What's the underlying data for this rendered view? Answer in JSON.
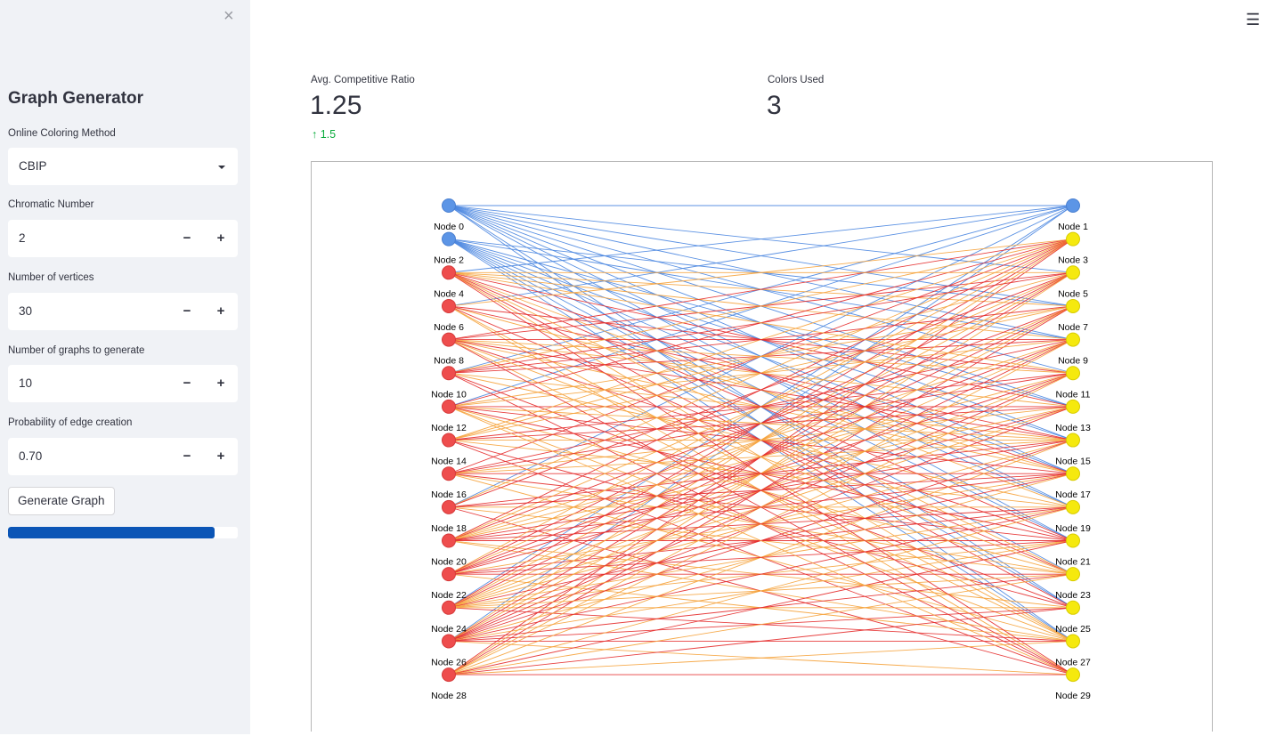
{
  "sidebar": {
    "close_icon": "×",
    "title": "Graph Generator",
    "method_label": "Online Coloring Method",
    "method_value": "CBIP",
    "chromatic_label": "Chromatic Number",
    "chromatic_value": "2",
    "vertices_label": "Number of vertices",
    "vertices_value": "30",
    "graphs_label": "Number of graphs to generate",
    "graphs_value": "10",
    "prob_label": "Probability of edge creation",
    "prob_value": "0.70",
    "minus": "−",
    "plus": "+",
    "generate_label": "Generate Graph",
    "progress": 0.9
  },
  "header": {
    "menu_icon": "☰"
  },
  "metrics": {
    "ratio_label": "Avg. Competitive Ratio",
    "ratio_value": "1.25",
    "ratio_delta": "1.5",
    "delta_icon": "arrow-up-icon",
    "colors_label": "Colors Used",
    "colors_value": "3"
  },
  "colors": {
    "blue": "#5c95e6",
    "red": "#ee4d4d",
    "yellow": "#f5e90e",
    "edge_blue": "#4a86e0",
    "edge_red": "#e52b2b",
    "edge_orange": "#f6a23a"
  },
  "chart_data": {
    "type": "network",
    "nodes": [
      {
        "label": "Node 0",
        "color": "blue"
      },
      {
        "label": "Node 1",
        "color": "blue"
      },
      {
        "label": "Node 2",
        "color": "blue"
      },
      {
        "label": "Node 3",
        "color": "yellow"
      },
      {
        "label": "Node 4",
        "color": "red"
      },
      {
        "label": "Node 5",
        "color": "yellow"
      },
      {
        "label": "Node 6",
        "color": "red"
      },
      {
        "label": "Node 7",
        "color": "yellow"
      },
      {
        "label": "Node 8",
        "color": "red"
      },
      {
        "label": "Node 9",
        "color": "yellow"
      },
      {
        "label": "Node 10",
        "color": "red"
      },
      {
        "label": "Node 11",
        "color": "yellow"
      },
      {
        "label": "Node 12",
        "color": "red"
      },
      {
        "label": "Node 13",
        "color": "yellow"
      },
      {
        "label": "Node 14",
        "color": "red"
      },
      {
        "label": "Node 15",
        "color": "yellow"
      },
      {
        "label": "Node 16",
        "color": "red"
      },
      {
        "label": "Node 17",
        "color": "yellow"
      },
      {
        "label": "Node 18",
        "color": "red"
      },
      {
        "label": "Node 19",
        "color": "yellow"
      },
      {
        "label": "Node 20",
        "color": "red"
      },
      {
        "label": "Node 21",
        "color": "yellow"
      },
      {
        "label": "Node 22",
        "color": "red"
      },
      {
        "label": "Node 23",
        "color": "yellow"
      },
      {
        "label": "Node 24",
        "color": "red"
      },
      {
        "label": "Node 25",
        "color": "yellow"
      },
      {
        "label": "Node 26",
        "color": "red"
      },
      {
        "label": "Node 27",
        "color": "yellow"
      },
      {
        "label": "Node 28",
        "color": "red"
      },
      {
        "label": "Node 29",
        "color": "yellow"
      }
    ],
    "edges": [
      [
        0,
        1
      ],
      [
        0,
        7
      ],
      [
        0,
        9
      ],
      [
        0,
        13
      ],
      [
        0,
        15
      ],
      [
        0,
        19
      ],
      [
        0,
        21
      ],
      [
        0,
        25
      ],
      [
        0,
        27
      ],
      [
        0,
        5
      ],
      [
        0,
        11
      ],
      [
        0,
        17
      ],
      [
        2,
        7
      ],
      [
        2,
        9
      ],
      [
        2,
        13
      ],
      [
        2,
        17
      ],
      [
        2,
        21
      ],
      [
        2,
        23
      ],
      [
        2,
        27
      ],
      [
        2,
        15
      ],
      [
        2,
        19
      ],
      [
        2,
        25
      ],
      [
        6,
        1
      ],
      [
        10,
        1
      ],
      [
        12,
        1
      ],
      [
        18,
        1
      ],
      [
        24,
        1
      ],
      [
        26,
        1
      ],
      [
        4,
        1
      ],
      [
        4,
        7
      ],
      [
        4,
        13
      ],
      [
        4,
        19
      ],
      [
        4,
        25
      ],
      [
        4,
        9
      ],
      [
        4,
        21
      ],
      [
        4,
        27
      ],
      [
        6,
        11
      ],
      [
        6,
        17
      ],
      [
        6,
        23
      ],
      [
        6,
        29
      ],
      [
        6,
        15
      ],
      [
        6,
        27
      ],
      [
        8,
        5
      ],
      [
        8,
        13
      ],
      [
        8,
        21
      ],
      [
        8,
        27
      ],
      [
        8,
        9
      ],
      [
        8,
        17
      ],
      [
        10,
        9
      ],
      [
        10,
        15
      ],
      [
        10,
        25
      ],
      [
        10,
        19
      ],
      [
        10,
        29
      ],
      [
        12,
        7
      ],
      [
        12,
        17
      ],
      [
        12,
        23
      ],
      [
        12,
        13
      ],
      [
        12,
        27
      ],
      [
        14,
        11
      ],
      [
        14,
        19
      ],
      [
        14,
        29
      ],
      [
        14,
        15
      ],
      [
        14,
        25
      ],
      [
        16,
        13
      ],
      [
        16,
        21
      ],
      [
        16,
        27
      ],
      [
        16,
        17
      ],
      [
        16,
        23
      ],
      [
        18,
        15
      ],
      [
        18,
        23
      ],
      [
        18,
        29
      ],
      [
        18,
        19
      ],
      [
        20,
        17
      ],
      [
        20,
        27
      ],
      [
        20,
        21
      ],
      [
        20,
        25
      ],
      [
        22,
        19
      ],
      [
        22,
        27
      ],
      [
        22,
        23
      ],
      [
        24,
        21
      ],
      [
        24,
        27
      ],
      [
        24,
        25
      ],
      [
        26,
        25
      ],
      [
        26,
        29
      ],
      [
        26,
        27
      ],
      [
        6,
        3
      ],
      [
        8,
        3
      ],
      [
        10,
        3
      ],
      [
        12,
        3
      ],
      [
        14,
        3
      ],
      [
        16,
        3
      ],
      [
        18,
        3
      ],
      [
        20,
        3
      ],
      [
        22,
        3
      ],
      [
        24,
        3
      ],
      [
        26,
        3
      ],
      [
        28,
        3
      ],
      [
        4,
        5
      ],
      [
        10,
        5
      ],
      [
        14,
        5
      ],
      [
        18,
        5
      ],
      [
        20,
        5
      ],
      [
        22,
        5
      ],
      [
        24,
        5
      ],
      [
        26,
        5
      ],
      [
        28,
        5
      ],
      [
        10,
        7
      ],
      [
        14,
        7
      ],
      [
        20,
        7
      ],
      [
        22,
        7
      ],
      [
        24,
        7
      ],
      [
        26,
        7
      ],
      [
        28,
        7
      ],
      [
        12,
        9
      ],
      [
        16,
        9
      ],
      [
        20,
        9
      ],
      [
        22,
        9
      ],
      [
        24,
        9
      ],
      [
        26,
        9
      ],
      [
        28,
        9
      ],
      [
        16,
        11
      ],
      [
        20,
        11
      ],
      [
        22,
        11
      ],
      [
        24,
        11
      ],
      [
        26,
        11
      ],
      [
        28,
        11
      ],
      [
        14,
        13
      ],
      [
        20,
        13
      ],
      [
        22,
        13
      ],
      [
        24,
        13
      ],
      [
        26,
        13
      ],
      [
        16,
        15
      ],
      [
        20,
        15
      ],
      [
        24,
        15
      ],
      [
        26,
        15
      ],
      [
        28,
        15
      ],
      [
        18,
        17
      ],
      [
        22,
        17
      ],
      [
        24,
        17
      ],
      [
        26,
        17
      ],
      [
        20,
        19
      ],
      [
        24,
        19
      ],
      [
        26,
        19
      ],
      [
        28,
        19
      ],
      [
        22,
        21
      ],
      [
        26,
        21
      ],
      [
        28,
        21
      ],
      [
        24,
        23
      ],
      [
        26,
        23
      ],
      [
        28,
        23
      ],
      [
        28,
        25
      ],
      [
        28,
        27
      ],
      [
        28,
        29
      ],
      [
        4,
        11
      ],
      [
        4,
        17
      ],
      [
        4,
        23
      ],
      [
        4,
        29
      ],
      [
        8,
        11
      ],
      [
        8,
        15
      ],
      [
        8,
        23
      ],
      [
        8,
        29
      ],
      [
        12,
        15
      ],
      [
        12,
        21
      ],
      [
        12,
        29
      ]
    ]
  }
}
